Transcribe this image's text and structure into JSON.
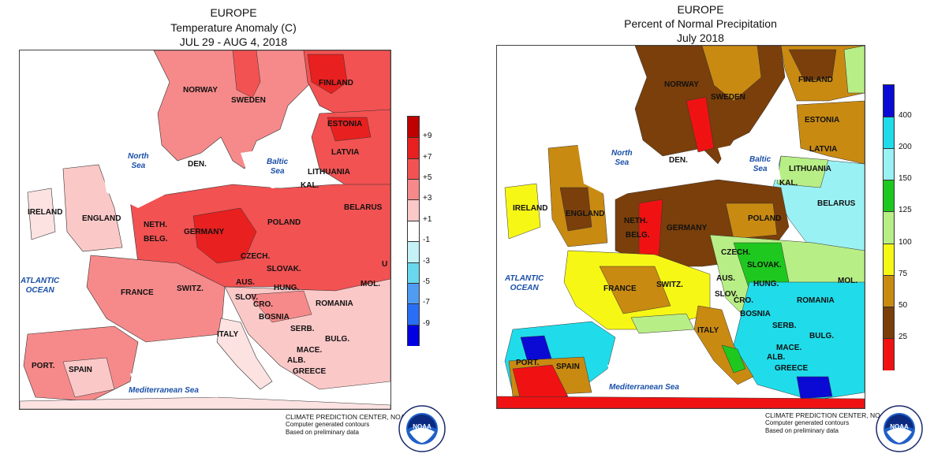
{
  "panels": [
    {
      "title_lines": [
        "EUROPE",
        "Temperature Anomaly (C)",
        "JUL 29 - AUG 4, 2018"
      ],
      "legend": {
        "labels": [
          "+9",
          "+7",
          "+5",
          "+3",
          "+1",
          "-1",
          "-3",
          "-5",
          "-7",
          "-9"
        ],
        "colors": [
          "#c00000",
          "#e8201f",
          "#f25252",
          "#f68a8a",
          "#fbc8c8",
          "#ffffff",
          "#c4f2f6",
          "#69d8ee",
          "#4f9cf2",
          "#2a6ef5",
          "#0000e0"
        ]
      },
      "countries": [
        "NORWAY",
        "SWEDEN",
        "FINLAND",
        "ESTONIA",
        "LATVIA",
        "DEN.",
        "LITHUANIA",
        "KAL.",
        "BELARUS",
        "IRELAND",
        "ENGLAND",
        "NETH.",
        "BELG.",
        "GERMANY",
        "POLAND",
        "CZECH.",
        "SLOVAK.",
        "FRANCE",
        "SWITZ.",
        "AUS.",
        "SLOV.",
        "HUNG.",
        "MOL.",
        "CRO.",
        "ROMANIA",
        "BOSNIA",
        "SERB.",
        "ITALY",
        "BULG.",
        "MACE.",
        "ALB.",
        "GREECE",
        "PORT.",
        "SPAIN",
        "U"
      ],
      "seas": [
        "North\nSea",
        "Baltic\nSea",
        "ATLANTIC\nOCEAN",
        "Mediterranean Sea"
      ]
    },
    {
      "title_lines": [
        "EUROPE",
        "Percent of Normal Precipitation",
        "July 2018"
      ],
      "legend": {
        "labels": [
          "400",
          "200",
          "150",
          "125",
          "100",
          "75",
          "50",
          "25"
        ],
        "colors": [
          "#0a0ad4",
          "#20dcea",
          "#9af1f4",
          "#1ec81e",
          "#b8ee86",
          "#f7f716",
          "#c98a12",
          "#7a3f0a",
          "#f01212"
        ]
      },
      "countries": [
        "NORWAY",
        "SWEDEN",
        "FINLAND",
        "ESTONIA",
        "LATVIA",
        "DEN.",
        "LITHUANIA",
        "KAL.",
        "BELARUS",
        "IRELAND",
        "ENGLAND",
        "NETH.",
        "BELG.",
        "GERMANY",
        "POLAND",
        "CZECH.",
        "SLOVAK.",
        "FRANCE",
        "SWITZ.",
        "AUS.",
        "SLOV.",
        "HUNG.",
        "MOL.",
        "CRO.",
        "ROMANIA",
        "BOSNIA",
        "SERB.",
        "ITALY",
        "BULG.",
        "MACE.",
        "ALB.",
        "GREECE",
        "PORT.",
        "SPAIN"
      ],
      "seas": [
        "North\nSea",
        "Baltic\nSea",
        "ATLANTIC\nOCEAN",
        "Mediterranean Sea"
      ]
    }
  ],
  "credit_lines": [
    "CLIMATE PREDICTION CENTER, NOAA",
    "Computer generated contours",
    "Based on preliminary data"
  ],
  "logo_text": "NOAA",
  "logo_ring_text": "NATIONAL OCEANIC AND ATMOSPHERIC ADMINISTRATION · U.S. DEPARTMENT OF COMMERCE"
}
